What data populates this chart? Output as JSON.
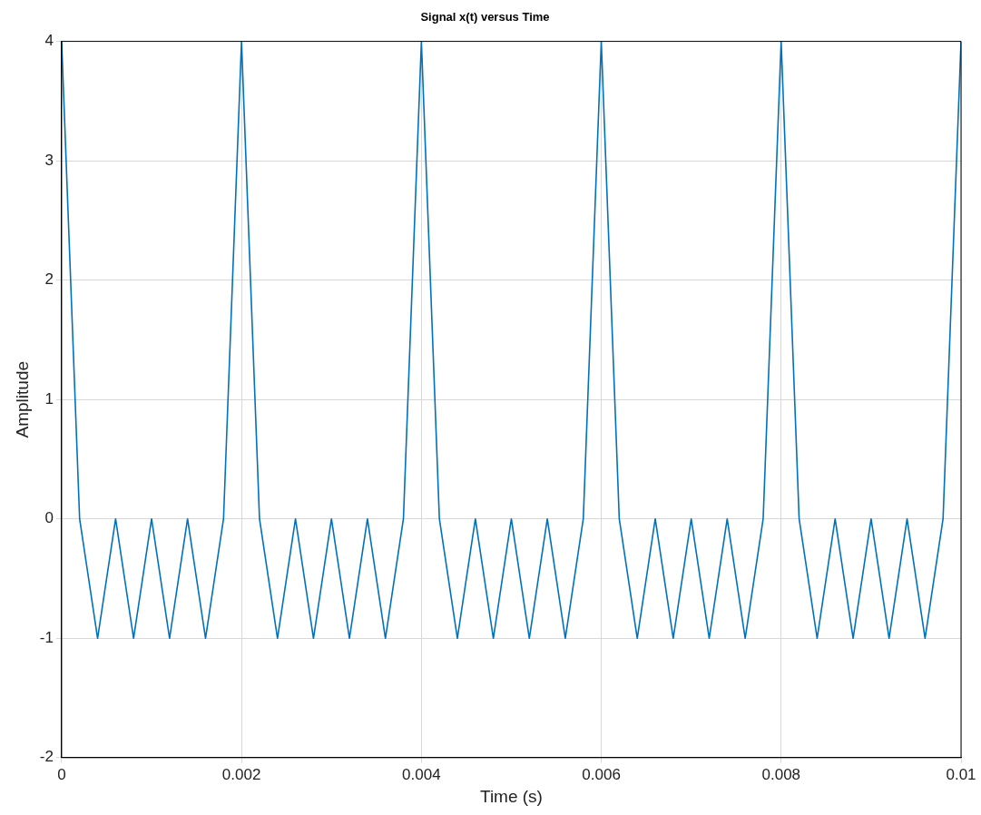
{
  "chart_data": {
    "type": "line",
    "title": "Signal x(t) versus Time",
    "xlabel": "Time (s)",
    "ylabel": "Amplitude",
    "x": [
      0,
      0.0002,
      0.0004,
      0.0006,
      0.0008,
      0.001,
      0.0012,
      0.0014,
      0.0016,
      0.0018,
      0.002,
      0.0022,
      0.0024,
      0.0026,
      0.0028,
      0.003,
      0.0032,
      0.0034,
      0.0036,
      0.0038,
      0.004,
      0.0042,
      0.0044,
      0.0046,
      0.0048,
      0.005,
      0.0052,
      0.0054,
      0.0056,
      0.0058,
      0.006,
      0.0062,
      0.0064,
      0.0066,
      0.0068,
      0.007,
      0.0072,
      0.0074,
      0.0076,
      0.0078,
      0.008,
      0.0082,
      0.0084,
      0.0086,
      0.0088,
      0.009,
      0.0092,
      0.0094,
      0.0096,
      0.0098,
      0.01
    ],
    "series": [
      {
        "color": "#0072bd",
        "values": [
          4,
          0,
          -1,
          0,
          -1,
          0,
          -1,
          0,
          -1,
          0,
          4,
          0,
          -1,
          0,
          -1,
          0,
          -1,
          0,
          -1,
          0,
          4,
          0,
          -1,
          0,
          -1,
          0,
          -1,
          0,
          -1,
          0,
          4,
          0,
          -1,
          0,
          -1,
          0,
          -1,
          0,
          -1,
          0,
          4,
          0,
          -1,
          0,
          -1,
          0,
          -1,
          0,
          -1,
          0,
          4
        ]
      }
    ],
    "xlim": [
      0,
      0.01
    ],
    "xticks": [
      0,
      0.002,
      0.004,
      0.006,
      0.008,
      0.01
    ],
    "ylim": [
      -2,
      4
    ],
    "yticks": [
      -2,
      -1,
      0,
      1,
      2,
      3,
      4
    ],
    "grid": true,
    "legend": false,
    "marker": "none",
    "line_style": "solid"
  }
}
